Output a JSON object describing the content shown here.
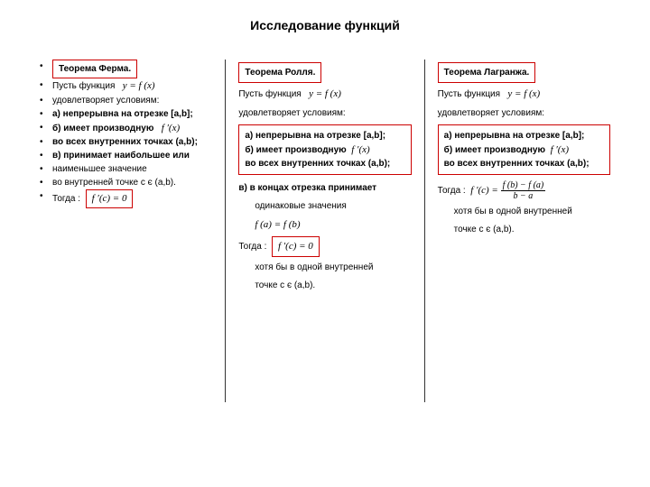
{
  "title": "Исследование функций",
  "colors": {
    "box_border": "#c00",
    "divider": "#333",
    "text": "#000",
    "bg": "#fff"
  },
  "col1": {
    "heading": "Теорема Ферма.",
    "lines": [
      "Пусть функция",
      "удовлетворяет условиям:",
      "а)  непрерывна на отрезке [a,b];",
      "б)  имеет производную",
      "     во всех внутренних точках (a,b);",
      "в)  принимает наибольшее или",
      "     наименьшее значение",
      "     во внутренней точке  с є (a,b).",
      "Тогда :"
    ],
    "func_formula": "y = f (x)",
    "deriv_formula": "f ′(x)",
    "result_formula": "f ′(c) = 0"
  },
  "col2": {
    "heading": "Теорема Ролля.",
    "intro1": "Пусть функция",
    "intro2": "удовлетворяет условиям:",
    "func_formula": "y = f (x)",
    "box_a": "а)  непрерывна на отрезке [a,b];",
    "box_b_1": "б)  имеет производную",
    "box_b_2": "     во всех внутренних точках (a,b);",
    "deriv_formula": "f ′(x)",
    "cond_v_1": "в)  в концах отрезка принимает",
    "cond_v_2": "одинаковые значения",
    "eq_formula": "f (a) = f (b)",
    "then": "Тогда :",
    "result_formula": "f ′(c) = 0",
    "tail1": "хотя бы в одной внутренней",
    "tail2": "точке  с є (a,b)."
  },
  "col3": {
    "heading": "Теорема Лагранжа.",
    "intro1": "Пусть функция",
    "intro2": "удовлетворяет условиям:",
    "func_formula": "y = f (x)",
    "box_a": "а)  непрерывна на отрезке [a,b];",
    "box_b_1": "б)  имеет производную",
    "box_b_2": "     во всех внутренних точках (a,b);",
    "deriv_formula": "f ′(x)",
    "then": "Тогда :",
    "frac_num": "f (b) − f (a)",
    "frac_den": "b − a",
    "frac_left": "f ′(c) =",
    "tail1": "хотя бы в одной внутренней",
    "tail2": "точке  с є (a,b)."
  }
}
